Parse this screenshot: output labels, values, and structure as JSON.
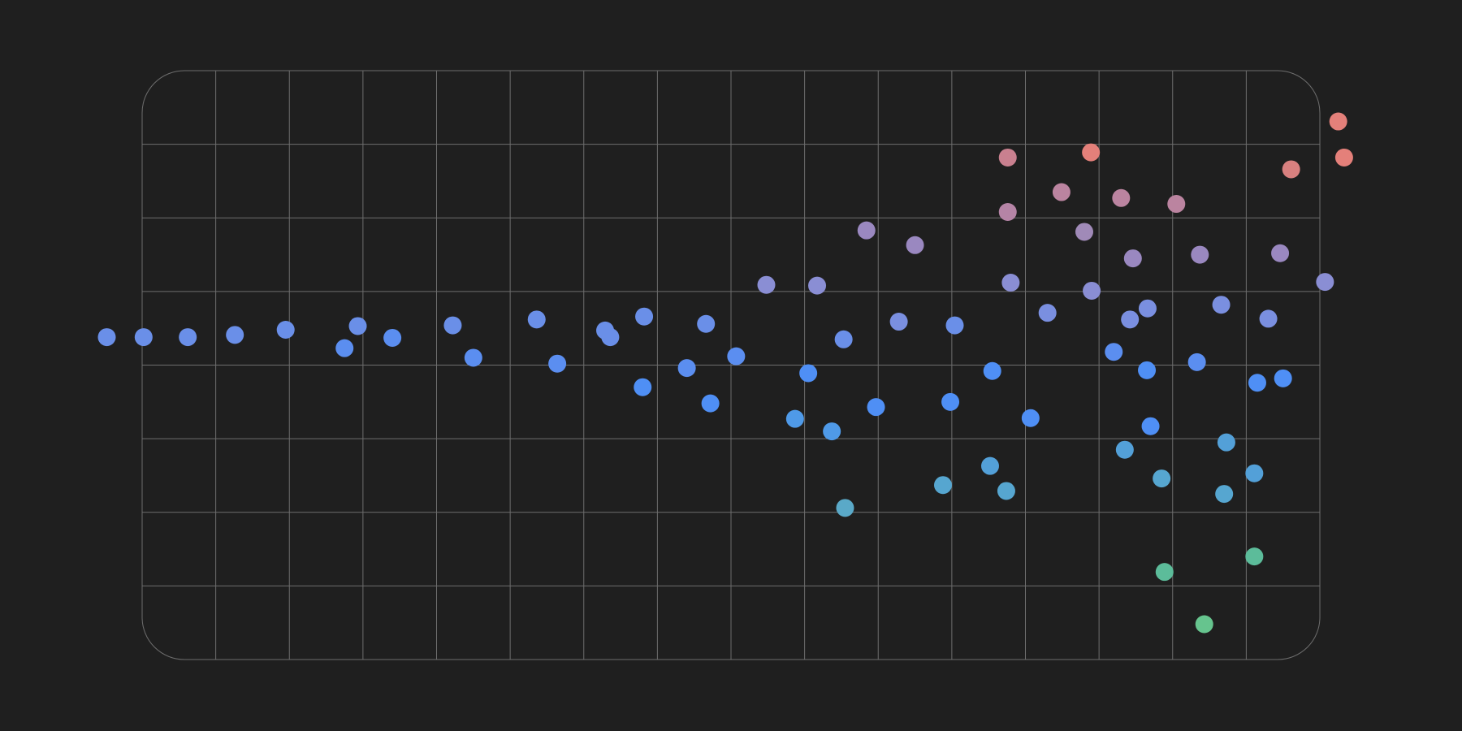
{
  "chart_data": {
    "type": "scatter",
    "title": "",
    "xlabel": "",
    "ylabel": "",
    "xlim": [
      0,
      16
    ],
    "ylim": [
      0,
      8
    ],
    "grid": true,
    "legend": "none",
    "colors": {
      "background": "#1f1f1f",
      "grid": "#6e6e6e"
    },
    "points": [
      {
        "x": -0.48,
        "y": 4.38,
        "color": "#6a8fe8"
      },
      {
        "x": 0.02,
        "y": 4.38,
        "color": "#6a8fe8"
      },
      {
        "x": 0.62,
        "y": 4.38,
        "color": "#6a8fe8"
      },
      {
        "x": 1.26,
        "y": 4.41,
        "color": "#6a8fe8"
      },
      {
        "x": 1.95,
        "y": 4.48,
        "color": "#6a8fe8"
      },
      {
        "x": 2.75,
        "y": 4.23,
        "color": "#5b8ef0"
      },
      {
        "x": 2.93,
        "y": 4.53,
        "color": "#6a8fe8"
      },
      {
        "x": 3.4,
        "y": 4.37,
        "color": "#5b8ef0"
      },
      {
        "x": 4.22,
        "y": 4.54,
        "color": "#6a8fe8"
      },
      {
        "x": 4.5,
        "y": 4.1,
        "color": "#5b8ef0"
      },
      {
        "x": 5.36,
        "y": 4.62,
        "color": "#6a8fe8"
      },
      {
        "x": 5.64,
        "y": 4.02,
        "color": "#5b8ef0"
      },
      {
        "x": 6.29,
        "y": 4.47,
        "color": "#6a8fe8"
      },
      {
        "x": 6.36,
        "y": 4.38,
        "color": "#6a8fe8"
      },
      {
        "x": 6.8,
        "y": 3.7,
        "color": "#4f8ff5"
      },
      {
        "x": 6.82,
        "y": 4.66,
        "color": "#6a8fe8"
      },
      {
        "x": 7.4,
        "y": 3.96,
        "color": "#5b8ef0"
      },
      {
        "x": 7.66,
        "y": 4.56,
        "color": "#6a8fe8"
      },
      {
        "x": 7.72,
        "y": 3.48,
        "color": "#4f8ff5"
      },
      {
        "x": 8.07,
        "y": 4.12,
        "color": "#5b8ef0"
      },
      {
        "x": 8.48,
        "y": 5.09,
        "color": "#8a8ed4"
      },
      {
        "x": 8.87,
        "y": 3.27,
        "color": "#4f9ae8"
      },
      {
        "x": 9.05,
        "y": 3.89,
        "color": "#4f8ff5"
      },
      {
        "x": 9.17,
        "y": 5.08,
        "color": "#8a8ed4"
      },
      {
        "x": 9.37,
        "y": 3.1,
        "color": "#4f9ae8"
      },
      {
        "x": 9.53,
        "y": 4.35,
        "color": "#6a8fe8"
      },
      {
        "x": 9.55,
        "y": 2.06,
        "color": "#5aa9c8"
      },
      {
        "x": 9.97,
        "y": 3.43,
        "color": "#4f8ff5"
      },
      {
        "x": 9.84,
        "y": 5.83,
        "color": "#9a88c0"
      },
      {
        "x": 10.28,
        "y": 4.59,
        "color": "#7a8fe0"
      },
      {
        "x": 10.5,
        "y": 5.63,
        "color": "#9a88c0"
      },
      {
        "x": 10.88,
        "y": 2.37,
        "color": "#56a6d0"
      },
      {
        "x": 10.98,
        "y": 3.5,
        "color": "#4f8ff5"
      },
      {
        "x": 11.04,
        "y": 4.54,
        "color": "#6a8fe8"
      },
      {
        "x": 11.52,
        "y": 2.63,
        "color": "#53a0d8"
      },
      {
        "x": 11.55,
        "y": 3.92,
        "color": "#4f8ff5"
      },
      {
        "x": 11.74,
        "y": 2.29,
        "color": "#56a6d0"
      },
      {
        "x": 11.76,
        "y": 6.82,
        "color": "#c9808f"
      },
      {
        "x": 11.76,
        "y": 6.08,
        "color": "#b584a6"
      },
      {
        "x": 11.8,
        "y": 5.12,
        "color": "#8a8ed4"
      },
      {
        "x": 12.07,
        "y": 3.28,
        "color": "#4f8ff5"
      },
      {
        "x": 12.3,
        "y": 4.71,
        "color": "#7a8fe0"
      },
      {
        "x": 12.49,
        "y": 6.35,
        "color": "#bb84a0"
      },
      {
        "x": 12.8,
        "y": 5.81,
        "color": "#a08ab8"
      },
      {
        "x": 12.89,
        "y": 6.89,
        "color": "#e4807a"
      },
      {
        "x": 12.9,
        "y": 5.01,
        "color": "#8a8ed4"
      },
      {
        "x": 13.2,
        "y": 4.18,
        "color": "#5b8ef0"
      },
      {
        "x": 13.3,
        "y": 6.27,
        "color": "#bb84a0"
      },
      {
        "x": 13.35,
        "y": 2.85,
        "color": "#53a0d8"
      },
      {
        "x": 13.42,
        "y": 4.62,
        "color": "#7a8fe0"
      },
      {
        "x": 13.46,
        "y": 5.45,
        "color": "#9a88c0"
      },
      {
        "x": 13.65,
        "y": 3.93,
        "color": "#4f8ff5"
      },
      {
        "x": 13.66,
        "y": 4.77,
        "color": "#7a8fe0"
      },
      {
        "x": 13.7,
        "y": 3.17,
        "color": "#4f8ff5"
      },
      {
        "x": 13.85,
        "y": 2.46,
        "color": "#56a6d0"
      },
      {
        "x": 13.89,
        "y": 1.19,
        "color": "#5cbc9a"
      },
      {
        "x": 14.05,
        "y": 6.19,
        "color": "#bb84a0"
      },
      {
        "x": 14.33,
        "y": 4.04,
        "color": "#5b8ef0"
      },
      {
        "x": 14.37,
        "y": 5.5,
        "color": "#9a88c0"
      },
      {
        "x": 14.43,
        "y": 0.48,
        "color": "#66c48e"
      },
      {
        "x": 14.66,
        "y": 4.82,
        "color": "#7a8fe0"
      },
      {
        "x": 14.7,
        "y": 2.25,
        "color": "#56a6d0"
      },
      {
        "x": 14.73,
        "y": 2.95,
        "color": "#53a0d8"
      },
      {
        "x": 15.11,
        "y": 2.53,
        "color": "#53a0d8"
      },
      {
        "x": 15.11,
        "y": 1.4,
        "color": "#5cbc9a"
      },
      {
        "x": 15.15,
        "y": 3.76,
        "color": "#4f8ff5"
      },
      {
        "x": 15.3,
        "y": 4.63,
        "color": "#7a8fe0"
      },
      {
        "x": 15.46,
        "y": 5.52,
        "color": "#9a88c0"
      },
      {
        "x": 15.5,
        "y": 3.82,
        "color": "#4f8ff5"
      },
      {
        "x": 15.61,
        "y": 6.66,
        "color": "#d8807f"
      },
      {
        "x": 16.07,
        "y": 5.13,
        "color": "#8a8ed4"
      },
      {
        "x": 16.25,
        "y": 7.31,
        "color": "#e4807a"
      },
      {
        "x": 16.33,
        "y": 6.82,
        "color": "#e4807a"
      }
    ]
  }
}
